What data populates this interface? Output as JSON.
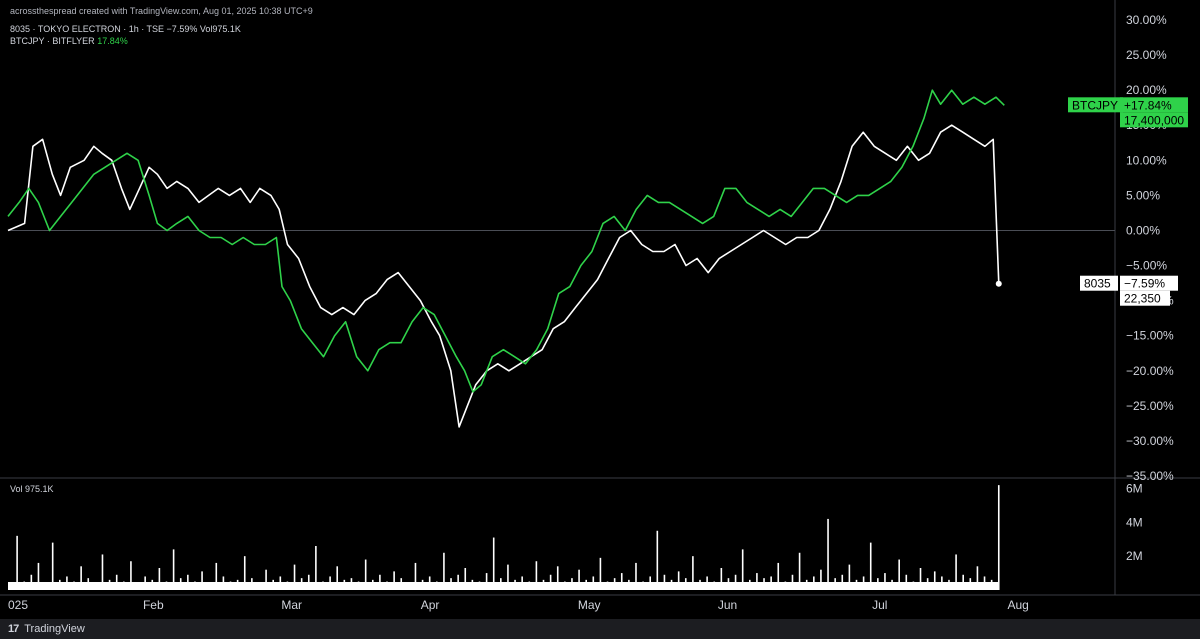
{
  "header": {
    "credit": "acrossthespread created with TradingView.com, Aug 01, 2025 10:38 UTC+9",
    "series1_line": "8035 · TOKYO ELECTRON · 1h · TSE  −7.59%  Vol975.1K",
    "series2_name": "BTCJPY · BITFLYER",
    "series2_value": "17.84%"
  },
  "volume_legend": "Vol  975.1K",
  "footer": {
    "logo": "17",
    "brand": "TradingView"
  },
  "colors": {
    "white_series": "#ffffff",
    "green_series": "#2fd24a",
    "background": "#000000",
    "grid": "#2a2e39"
  },
  "badges": {
    "btc_name": "BTCJPY",
    "btc_change": "+17.84%",
    "btc_price": "17,400,000",
    "te_name": "8035",
    "te_change": "−7.59%",
    "te_price": "22,350"
  },
  "chart_data": {
    "type": "line",
    "x_labels": [
      "025",
      "Feb",
      "Mar",
      "Apr",
      "May",
      "Jun",
      "Jul",
      "Aug"
    ],
    "y_labels": [
      "30.00%",
      "25.00%",
      "20.00%",
      "15.00%",
      "10.00%",
      "5.00%",
      "0.00%",
      "−5.00%",
      "−10.00%",
      "−15.00%",
      "−20.00%",
      "−25.00%",
      "−30.00%",
      "−35.00%"
    ],
    "ylim": [
      -35,
      30
    ],
    "volume_labels": [
      "6M",
      "4M",
      "2M"
    ],
    "volume_ylim": [
      0,
      6.5
    ],
    "x_range": [
      0,
      8
    ],
    "series": [
      {
        "name": "8035",
        "color": "#ffffff",
        "points": [
          [
            0.0,
            0
          ],
          [
            0.12,
            1
          ],
          [
            0.18,
            12
          ],
          [
            0.25,
            13
          ],
          [
            0.32,
            8
          ],
          [
            0.38,
            5
          ],
          [
            0.45,
            9
          ],
          [
            0.55,
            10
          ],
          [
            0.62,
            12
          ],
          [
            0.68,
            11
          ],
          [
            0.75,
            10
          ],
          [
            0.82,
            6
          ],
          [
            0.88,
            3
          ],
          [
            0.95,
            6
          ],
          [
            1.02,
            9
          ],
          [
            1.08,
            8
          ],
          [
            1.15,
            6
          ],
          [
            1.22,
            7
          ],
          [
            1.3,
            6
          ],
          [
            1.38,
            4
          ],
          [
            1.45,
            5
          ],
          [
            1.52,
            6
          ],
          [
            1.6,
            5
          ],
          [
            1.68,
            6
          ],
          [
            1.75,
            4
          ],
          [
            1.82,
            6
          ],
          [
            1.9,
            5
          ],
          [
            1.96,
            3
          ],
          [
            2.02,
            -2
          ],
          [
            2.1,
            -4
          ],
          [
            2.18,
            -8
          ],
          [
            2.26,
            -11
          ],
          [
            2.34,
            -12
          ],
          [
            2.42,
            -11
          ],
          [
            2.5,
            -12
          ],
          [
            2.58,
            -10
          ],
          [
            2.66,
            -9
          ],
          [
            2.74,
            -7
          ],
          [
            2.82,
            -6
          ],
          [
            2.9,
            -8
          ],
          [
            2.98,
            -10
          ],
          [
            3.06,
            -13
          ],
          [
            3.12,
            -15
          ],
          [
            3.2,
            -20
          ],
          [
            3.26,
            -28
          ],
          [
            3.32,
            -25
          ],
          [
            3.38,
            -22
          ],
          [
            3.46,
            -20
          ],
          [
            3.54,
            -19
          ],
          [
            3.62,
            -20
          ],
          [
            3.7,
            -19
          ],
          [
            3.78,
            -18
          ],
          [
            3.86,
            -17
          ],
          [
            3.94,
            -14
          ],
          [
            4.02,
            -13
          ],
          [
            4.1,
            -11
          ],
          [
            4.18,
            -9
          ],
          [
            4.26,
            -7
          ],
          [
            4.34,
            -4
          ],
          [
            4.42,
            -1
          ],
          [
            4.5,
            0
          ],
          [
            4.58,
            -2
          ],
          [
            4.66,
            -3
          ],
          [
            4.74,
            -3
          ],
          [
            4.82,
            -2
          ],
          [
            4.9,
            -5
          ],
          [
            4.98,
            -4
          ],
          [
            5.06,
            -6
          ],
          [
            5.14,
            -4
          ],
          [
            5.22,
            -3
          ],
          [
            5.3,
            -2
          ],
          [
            5.38,
            -1
          ],
          [
            5.46,
            0
          ],
          [
            5.54,
            -1
          ],
          [
            5.62,
            -2
          ],
          [
            5.7,
            -1
          ],
          [
            5.78,
            -1
          ],
          [
            5.86,
            0
          ],
          [
            5.94,
            3
          ],
          [
            6.02,
            7
          ],
          [
            6.1,
            12
          ],
          [
            6.18,
            14
          ],
          [
            6.26,
            12
          ],
          [
            6.34,
            11
          ],
          [
            6.42,
            10
          ],
          [
            6.5,
            12
          ],
          [
            6.58,
            10
          ],
          [
            6.66,
            11
          ],
          [
            6.74,
            14
          ],
          [
            6.82,
            15
          ],
          [
            6.9,
            14
          ],
          [
            6.98,
            13
          ],
          [
            7.06,
            12
          ],
          [
            7.12,
            13
          ],
          [
            7.16,
            -7.59
          ]
        ]
      },
      {
        "name": "BTCJPY",
        "color": "#2fd24a",
        "points": [
          [
            0.0,
            2
          ],
          [
            0.08,
            4
          ],
          [
            0.15,
            6
          ],
          [
            0.22,
            4
          ],
          [
            0.3,
            0
          ],
          [
            0.38,
            2
          ],
          [
            0.46,
            4
          ],
          [
            0.54,
            6
          ],
          [
            0.62,
            8
          ],
          [
            0.7,
            9
          ],
          [
            0.78,
            10
          ],
          [
            0.86,
            11
          ],
          [
            0.94,
            10
          ],
          [
            1.02,
            5
          ],
          [
            1.08,
            1
          ],
          [
            1.15,
            0
          ],
          [
            1.22,
            1
          ],
          [
            1.3,
            2
          ],
          [
            1.38,
            0
          ],
          [
            1.46,
            -1
          ],
          [
            1.54,
            -1
          ],
          [
            1.62,
            -2
          ],
          [
            1.7,
            -1
          ],
          [
            1.78,
            -2
          ],
          [
            1.86,
            -2
          ],
          [
            1.94,
            -1
          ],
          [
            1.98,
            -8
          ],
          [
            2.04,
            -10
          ],
          [
            2.12,
            -14
          ],
          [
            2.2,
            -16
          ],
          [
            2.28,
            -18
          ],
          [
            2.36,
            -15
          ],
          [
            2.44,
            -13
          ],
          [
            2.52,
            -18
          ],
          [
            2.6,
            -20
          ],
          [
            2.68,
            -17
          ],
          [
            2.76,
            -16
          ],
          [
            2.84,
            -16
          ],
          [
            2.92,
            -13
          ],
          [
            3.0,
            -11
          ],
          [
            3.08,
            -12
          ],
          [
            3.16,
            -15
          ],
          [
            3.24,
            -18
          ],
          [
            3.3,
            -20
          ],
          [
            3.36,
            -23
          ],
          [
            3.42,
            -22
          ],
          [
            3.5,
            -18
          ],
          [
            3.58,
            -17
          ],
          [
            3.66,
            -18
          ],
          [
            3.74,
            -19
          ],
          [
            3.82,
            -17
          ],
          [
            3.9,
            -14
          ],
          [
            3.98,
            -9
          ],
          [
            4.06,
            -8
          ],
          [
            4.14,
            -5
          ],
          [
            4.22,
            -3
          ],
          [
            4.3,
            1
          ],
          [
            4.38,
            2
          ],
          [
            4.46,
            0
          ],
          [
            4.54,
            3
          ],
          [
            4.62,
            5
          ],
          [
            4.7,
            4
          ],
          [
            4.78,
            4
          ],
          [
            4.86,
            3
          ],
          [
            4.94,
            2
          ],
          [
            5.02,
            1
          ],
          [
            5.1,
            2
          ],
          [
            5.18,
            6
          ],
          [
            5.26,
            6
          ],
          [
            5.34,
            4
          ],
          [
            5.42,
            3
          ],
          [
            5.5,
            2
          ],
          [
            5.58,
            3
          ],
          [
            5.66,
            2
          ],
          [
            5.74,
            4
          ],
          [
            5.82,
            6
          ],
          [
            5.9,
            6
          ],
          [
            5.98,
            5
          ],
          [
            6.06,
            4
          ],
          [
            6.14,
            5
          ],
          [
            6.22,
            5
          ],
          [
            6.3,
            6
          ],
          [
            6.38,
            7
          ],
          [
            6.46,
            9
          ],
          [
            6.54,
            12
          ],
          [
            6.62,
            16
          ],
          [
            6.68,
            20
          ],
          [
            6.74,
            18
          ],
          [
            6.82,
            20
          ],
          [
            6.9,
            18
          ],
          [
            6.98,
            19
          ],
          [
            7.06,
            18
          ],
          [
            7.14,
            19
          ],
          [
            7.2,
            17.84
          ]
        ]
      }
    ],
    "volume": [
      0.3,
      3.2,
      0.5,
      0.9,
      1.6,
      0.4,
      2.8,
      0.6,
      0.8,
      0.5,
      1.4,
      0.7,
      0.4,
      2.1,
      0.6,
      0.9,
      0.5,
      1.7,
      0.4,
      0.8,
      0.6,
      1.3,
      0.5,
      2.4,
      0.7,
      0.9,
      0.5,
      1.1,
      0.4,
      1.6,
      0.8,
      0.5,
      0.6,
      2.0,
      0.7,
      0.4,
      1.2,
      0.6,
      0.8,
      0.5,
      1.5,
      0.7,
      0.9,
      2.6,
      0.5,
      0.8,
      1.4,
      0.6,
      0.7,
      0.5,
      1.8,
      0.6,
      0.9,
      0.5,
      1.1,
      0.7,
      0.4,
      1.6,
      0.6,
      0.8,
      0.5,
      2.2,
      0.7,
      0.9,
      1.3,
      0.6,
      0.5,
      1.0,
      3.1,
      0.7,
      1.5,
      0.6,
      0.8,
      0.5,
      1.7,
      0.6,
      0.9,
      1.4,
      0.5,
      0.7,
      1.2,
      0.6,
      0.8,
      1.9,
      0.5,
      0.7,
      1.0,
      0.6,
      1.6,
      0.5,
      0.8,
      3.5,
      0.9,
      0.6,
      1.1,
      0.7,
      2.0,
      0.6,
      0.8,
      0.5,
      1.3,
      0.7,
      0.9,
      2.4,
      0.6,
      1.0,
      0.7,
      0.8,
      1.6,
      0.5,
      0.9,
      2.2,
      0.6,
      0.8,
      1.2,
      4.2,
      0.7,
      0.9,
      1.5,
      0.6,
      0.8,
      2.8,
      0.7,
      1.0,
      0.6,
      1.8,
      0.9,
      0.5,
      1.3,
      0.7,
      1.1,
      0.8,
      0.6,
      2.1,
      0.9,
      0.7,
      1.4,
      0.8,
      0.6,
      6.2
    ]
  }
}
